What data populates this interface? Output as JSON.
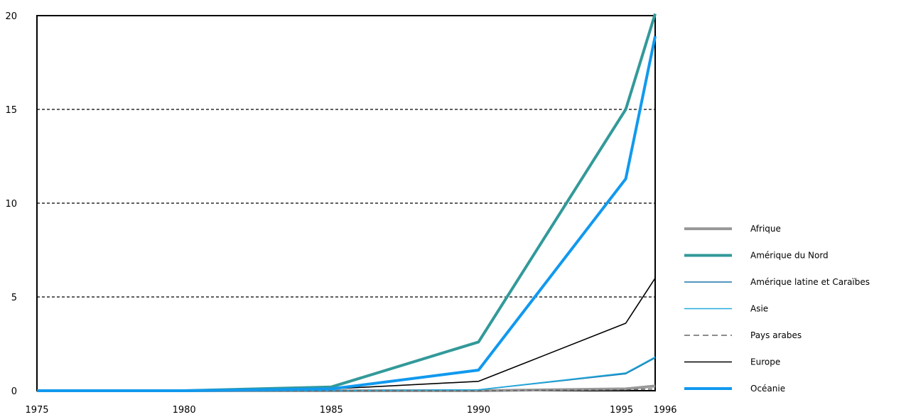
{
  "chart_data": {
    "type": "line",
    "title": "",
    "xlabel": "",
    "ylabel": "",
    "x": [
      1975,
      1980,
      1985,
      1990,
      1995,
      1996
    ],
    "xlim": [
      1975,
      1996
    ],
    "ylim": [
      0,
      20
    ],
    "x_ticks": [
      "1975",
      "1980",
      "1985",
      "1990",
      "1995",
      "1996"
    ],
    "y_ticks": [
      "0",
      "5",
      "10",
      "15",
      "20"
    ],
    "grid": "horizontal dashed",
    "legend_position": "right",
    "series": [
      {
        "name": "Afrique",
        "color": "#999999",
        "style": "solid-thick",
        "values": [
          0,
          0,
          0,
          0,
          0.1,
          0.25
        ]
      },
      {
        "name": "Amérique du Nord",
        "color": "#339999",
        "style": "solid-thick",
        "values": [
          0,
          0,
          0.2,
          2.6,
          15.0,
          20.1
        ]
      },
      {
        "name": "Amérique latine et Caraïbes",
        "color": "#1a77aa",
        "style": "solid",
        "values": [
          0,
          0,
          0,
          0.05,
          0.9,
          1.75
        ]
      },
      {
        "name": "Asie",
        "color": "#22aadd",
        "style": "solid",
        "values": [
          0,
          0,
          0,
          0.05,
          0.95,
          1.8
        ]
      },
      {
        "name": "Pays arabes",
        "color": "#666666",
        "style": "dashed",
        "values": [
          0,
          0,
          0,
          0,
          0.05,
          0.1
        ]
      },
      {
        "name": "Europe",
        "color": "#000000",
        "style": "solid",
        "values": [
          0,
          0,
          0.1,
          0.5,
          3.6,
          6.0
        ]
      },
      {
        "name": "Océanie",
        "color": "#1199ee",
        "style": "solid-thick",
        "values": [
          0,
          0,
          0.1,
          1.1,
          11.3,
          18.9
        ]
      }
    ]
  }
}
